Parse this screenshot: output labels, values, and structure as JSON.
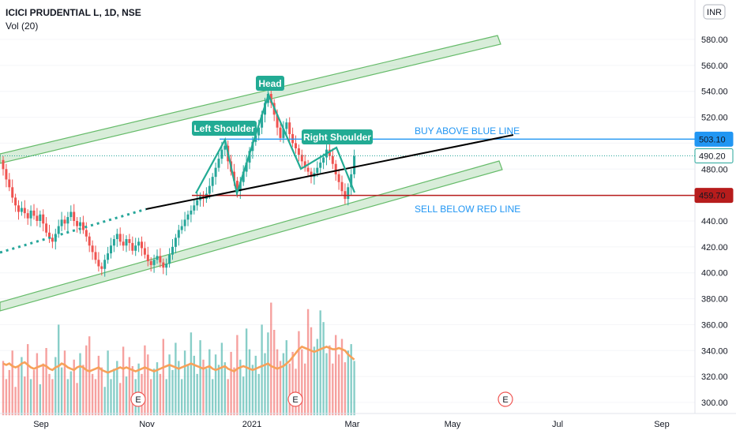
{
  "legend": {
    "symbol_line": "ICICI PRUDENTIAL L, 1D, NSE",
    "indicator": "Vol (20)"
  },
  "currency": "INR",
  "chart_data": {
    "type": "candlestick",
    "price_axis": {
      "ticks": [
        300,
        320,
        340,
        360,
        380,
        400,
        420,
        440,
        460,
        480,
        500,
        520,
        540,
        560,
        580
      ],
      "tick_labels": [
        "300.00",
        "320.00",
        "340.00",
        "360.00",
        "380.00",
        "400.00",
        "420.00",
        "440.00",
        "460.00",
        "480.00",
        "500.00",
        "520.00",
        "540.00",
        "560.00",
        "580.00"
      ],
      "ylim": [
        295,
        590
      ]
    },
    "time_axis": {
      "labels": [
        "Sep",
        "Nov",
        "2021",
        "Mar",
        "May",
        "Jul",
        "Sep"
      ]
    },
    "price_tags": [
      {
        "label": "503.10",
        "value": 503.1,
        "color": "#2196f3"
      },
      {
        "label": "490.20",
        "value": 490.2,
        "color": "#26a69a"
      },
      {
        "label": "459.70",
        "value": 459.7,
        "color": "#b71c1c"
      }
    ],
    "annotations": {
      "buy_text": "BUY ABOVE BLUE LINE",
      "sell_text": "SELL BELOW RED LINE",
      "head": "Head",
      "left_shoulder": "Left Shoulder",
      "right_shoulder": "Right Shoulder",
      "event_marker": "E"
    },
    "closes_start": 487,
    "closes": [
      480,
      472,
      466,
      458,
      452,
      447,
      450,
      446,
      442,
      448,
      444,
      440,
      445,
      438,
      431,
      427,
      424,
      430,
      436,
      441,
      438,
      443,
      447,
      440,
      436,
      439,
      433,
      428,
      421,
      416,
      410,
      405,
      403,
      410,
      415,
      421,
      426,
      430,
      424,
      421,
      426,
      423,
      417,
      421,
      424,
      419,
      414,
      409,
      406,
      410,
      413,
      408,
      404,
      407,
      414,
      420,
      427,
      433,
      436,
      441,
      445,
      448,
      452,
      456,
      459,
      457,
      461,
      467,
      474,
      481,
      488,
      495,
      498,
      486,
      478,
      471,
      463,
      470,
      478,
      485,
      494,
      501,
      506,
      512,
      522,
      531,
      538,
      531,
      522,
      512,
      504,
      511,
      516,
      507,
      500,
      496,
      491,
      486,
      481,
      478,
      474,
      477,
      481,
      485,
      489,
      495,
      490,
      484,
      476,
      470,
      463,
      457,
      466,
      476,
      490
    ],
    "vol_ma": [
      330,
      329,
      330,
      328,
      327,
      328,
      330,
      331,
      329,
      327,
      326,
      327,
      328,
      329,
      328,
      326,
      325,
      327,
      328,
      330,
      329,
      327,
      326,
      325,
      327,
      328,
      327,
      325,
      324,
      325,
      326,
      327,
      325,
      324,
      323,
      324,
      325,
      326,
      327,
      326,
      327,
      326,
      325,
      324,
      325,
      326,
      327,
      326,
      325,
      324,
      325,
      326,
      327,
      328,
      329,
      328,
      327,
      326,
      327,
      328,
      329,
      330,
      329,
      328,
      327,
      326,
      327,
      328,
      326,
      325,
      326,
      327,
      328,
      326,
      325,
      324,
      326,
      327,
      328,
      327,
      326,
      325,
      326,
      327,
      328,
      329,
      330,
      328,
      327,
      326,
      327,
      328,
      330,
      332,
      335,
      338,
      341,
      343,
      342,
      341,
      340,
      339,
      340,
      341,
      342,
      343,
      342,
      341,
      341,
      342,
      341,
      340,
      337,
      335,
      333
    ],
    "volumes": [
      332,
      318,
      325,
      340,
      312,
      328,
      335,
      320,
      345,
      318,
      325,
      338,
      314,
      330,
      342,
      322,
      318,
      335,
      360,
      327,
      340,
      318,
      324,
      333,
      315,
      338,
      329,
      344,
      351,
      322,
      318,
      336,
      327,
      312,
      340,
      318,
      326,
      332,
      315,
      343,
      320,
      335,
      328,
      318,
      330,
      322,
      344,
      337,
      318,
      326,
      331,
      322,
      349,
      318,
      337,
      325,
      346,
      332,
      318,
      340,
      329,
      354,
      336,
      322,
      348,
      333,
      326,
      341,
      318,
      337,
      329,
      346,
      331,
      318,
      339,
      327,
      352,
      333,
      320,
      357,
      341,
      329,
      336,
      322,
      360,
      338,
      354,
      377,
      356,
      341,
      332,
      338,
      348,
      330,
      339,
      326,
      355,
      341,
      330,
      372,
      358,
      343,
      349,
      371,
      362,
      338,
      344,
      330,
      352,
      337,
      349,
      331,
      340,
      345,
      332
    ]
  }
}
